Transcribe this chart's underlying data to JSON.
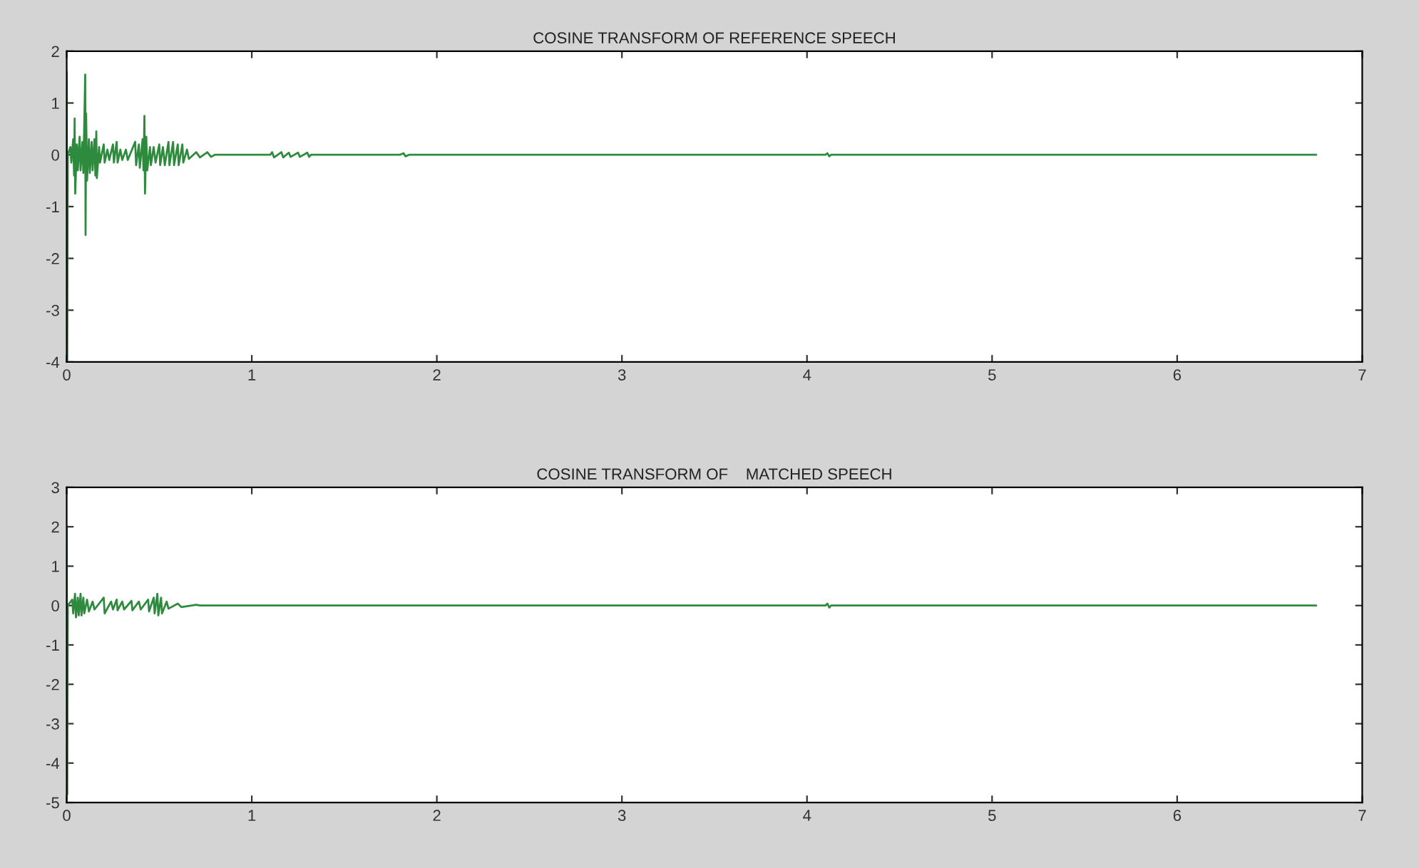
{
  "chart_data": [
    {
      "type": "line",
      "title": "COSINE TRANSFORM OF REFERENCE SPEECH",
      "xlim": [
        0,
        7
      ],
      "ylim": [
        -4,
        2
      ],
      "xticks": [
        0,
        1,
        2,
        3,
        4,
        5,
        6,
        7
      ],
      "yticks": [
        -4,
        -3,
        -2,
        -1,
        0,
        1,
        2
      ],
      "grid": false,
      "series": [
        {
          "color": "#2e8b3e",
          "x": [
            0,
            0.003,
            0.006,
            0.02,
            0.025,
            0.035,
            0.04,
            0.043,
            0.046,
            0.055,
            0.06,
            0.07,
            0.075,
            0.085,
            0.09,
            0.1,
            0.102,
            0.105,
            0.11,
            0.12,
            0.125,
            0.135,
            0.14,
            0.15,
            0.155,
            0.16,
            0.163,
            0.175,
            0.18,
            0.2,
            0.205,
            0.22,
            0.23,
            0.25,
            0.255,
            0.27,
            0.275,
            0.29,
            0.3,
            0.32,
            0.33,
            0.37,
            0.375,
            0.39,
            0.395,
            0.41,
            0.415,
            0.42,
            0.423,
            0.43,
            0.435,
            0.45,
            0.455,
            0.47,
            0.48,
            0.5,
            0.505,
            0.52,
            0.53,
            0.55,
            0.555,
            0.575,
            0.58,
            0.6,
            0.605,
            0.625,
            0.63,
            0.65,
            0.66,
            0.7,
            0.72,
            0.76,
            0.78,
            0.8,
            1.1,
            1.11,
            1.12,
            1.16,
            1.17,
            1.2,
            1.21,
            1.25,
            1.26,
            1.3,
            1.31,
            1.32,
            1.8,
            1.82,
            1.83,
            1.85,
            4.1,
            4.11,
            4.12,
            4.13,
            6.75
          ],
          "values": [
            1.6,
            -4,
            0,
            0.15,
            -0.15,
            0.3,
            -0.4,
            0.7,
            -0.75,
            0.2,
            -0.3,
            0.35,
            -0.3,
            0.25,
            -0.35,
            1.55,
            -1.55,
            0.8,
            -0.5,
            0.3,
            -0.35,
            0.25,
            -0.3,
            0.3,
            -0.4,
            0.45,
            -0.45,
            0.15,
            -0.15,
            0.2,
            -0.15,
            0.1,
            -0.1,
            0.2,
            -0.15,
            0.25,
            -0.15,
            0.1,
            -0.1,
            0.1,
            -0.1,
            0.25,
            -0.2,
            0.2,
            -0.25,
            0.3,
            -0.3,
            0.75,
            -0.75,
            0.35,
            -0.3,
            0.15,
            -0.2,
            0.15,
            -0.15,
            0.2,
            -0.2,
            0.15,
            -0.2,
            0.25,
            -0.2,
            0.25,
            -0.2,
            0.2,
            -0.2,
            0.2,
            -0.15,
            0.1,
            -0.08,
            0.05,
            -0.05,
            0.05,
            -0.04,
            0,
            0,
            0.05,
            -0.05,
            0.05,
            -0.05,
            0.04,
            -0.04,
            0.04,
            -0.04,
            0.04,
            -0.04,
            0,
            0,
            0.03,
            -0.03,
            0,
            0,
            0.03,
            -0.03,
            0,
            0
          ]
        }
      ]
    },
    {
      "type": "line",
      "title": "COSINE TRANSFORM OF    MATCHED SPEECH",
      "xlim": [
        0,
        7
      ],
      "ylim": [
        -5,
        3
      ],
      "xticks": [
        0,
        1,
        2,
        3,
        4,
        5,
        6,
        7
      ],
      "yticks": [
        -5,
        -4,
        -3,
        -2,
        -1,
        0,
        1,
        2,
        3
      ],
      "grid": false,
      "series": [
        {
          "color": "#2e8b3e",
          "x": [
            0,
            0.003,
            0.006,
            0.03,
            0.035,
            0.045,
            0.05,
            0.06,
            0.065,
            0.075,
            0.08,
            0.09,
            0.095,
            0.11,
            0.12,
            0.14,
            0.15,
            0.2,
            0.205,
            0.24,
            0.25,
            0.27,
            0.275,
            0.3,
            0.31,
            0.35,
            0.355,
            0.39,
            0.4,
            0.44,
            0.445,
            0.47,
            0.475,
            0.49,
            0.495,
            0.51,
            0.515,
            0.54,
            0.55,
            0.6,
            0.62,
            0.7,
            0.72,
            4.1,
            4.11,
            4.12,
            4.13,
            6.75
          ],
          "values": [
            2,
            -4.8,
            0,
            0.15,
            -0.2,
            0.3,
            -0.3,
            0.2,
            -0.25,
            0.3,
            -0.25,
            0.2,
            -0.2,
            0.15,
            -0.15,
            0.1,
            -0.1,
            0.2,
            -0.2,
            0.1,
            -0.1,
            0.15,
            -0.12,
            0.1,
            -0.1,
            0.12,
            -0.12,
            0.1,
            -0.1,
            0.15,
            -0.15,
            0.2,
            -0.2,
            0.3,
            -0.25,
            0.2,
            -0.2,
            0.1,
            -0.08,
            0.05,
            -0.04,
            0.02,
            0,
            0,
            0.05,
            -0.05,
            0,
            0
          ]
        }
      ]
    }
  ]
}
